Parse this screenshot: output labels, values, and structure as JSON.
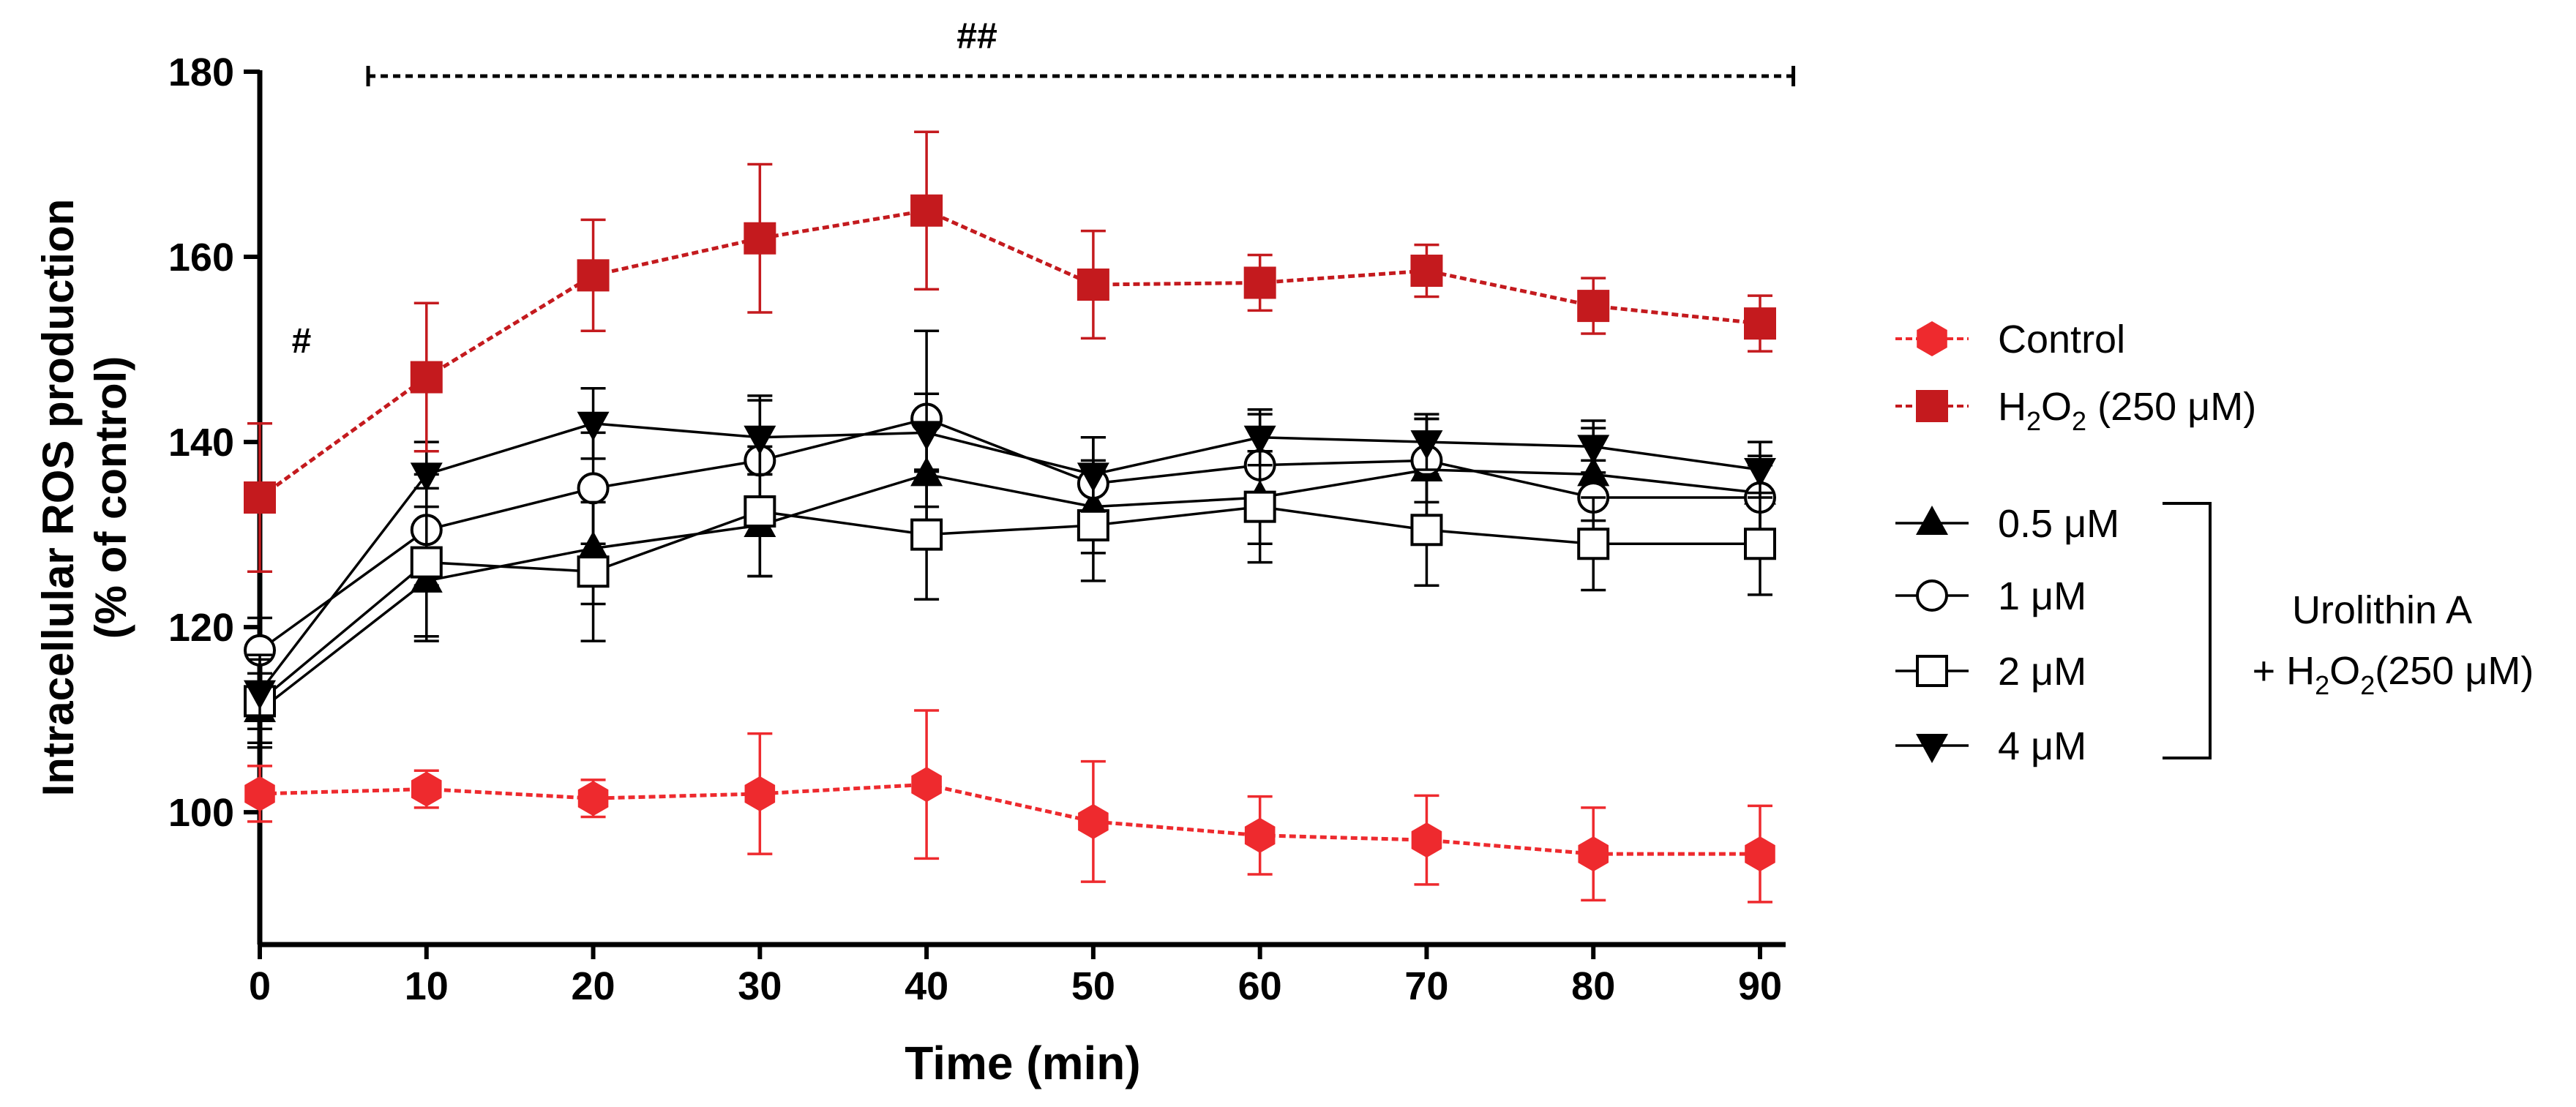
{
  "chart_data": {
    "type": "line",
    "title": "",
    "xlabel": "Time (min)",
    "ylabel_line1": "Intracellular ROS production",
    "ylabel_line2": "(% of control)",
    "x": [
      0,
      10,
      20,
      30,
      40,
      50,
      60,
      70,
      80,
      90
    ],
    "xlim": [
      0,
      90
    ],
    "ylim": [
      88,
      180
    ],
    "xticks": [
      "0",
      "10",
      "20",
      "30",
      "40",
      "50",
      "60",
      "70",
      "80",
      "90"
    ],
    "yticks": [
      "100",
      "120",
      "140",
      "160",
      "180"
    ],
    "grid": false,
    "legend_placement": "right",
    "annotations": {
      "single": "#",
      "double": "##"
    },
    "series": [
      {
        "name": "Control",
        "color": "#ee2a2e",
        "marker": "hexagon",
        "line": "dotted",
        "values": [
          102,
          102.5,
          101.5,
          102,
          103,
          99,
          97.5,
          97,
          95.5,
          95.5
        ],
        "err": [
          3,
          2,
          2,
          6.5,
          8,
          6.5,
          4.2,
          4.8,
          5,
          5.2
        ]
      },
      {
        "name": "H2O2 (250 μM)",
        "color": "#c41a1e",
        "marker": "square-filled",
        "line": "dotted",
        "values": [
          134,
          147,
          158,
          162,
          165,
          157,
          157.2,
          158.5,
          154.7,
          152.8
        ],
        "err": [
          8,
          8,
          6,
          8,
          8.5,
          5.8,
          3,
          2.8,
          3,
          3
        ]
      },
      {
        "name": "0.5 μM",
        "color": "#000000",
        "marker": "triangle-up",
        "line": "solid",
        "values": [
          111,
          125,
          128.5,
          131,
          136.5,
          133,
          134,
          137,
          136.5,
          134.5
        ],
        "err": [
          4,
          6.5,
          6,
          5.5,
          6,
          5,
          5,
          5.5,
          5,
          4
        ]
      },
      {
        "name": "1 μM",
        "color": "#000000",
        "marker": "circle-open",
        "line": "solid",
        "values": [
          117.5,
          130.5,
          135,
          138,
          142.5,
          135.5,
          137.5,
          138,
          134,
          134
        ],
        "err": [
          3.5,
          6,
          6,
          7,
          9.5,
          5,
          5.5,
          4.5,
          4,
          3.5
        ]
      },
      {
        "name": "2 μM",
        "color": "#000000",
        "marker": "square-open",
        "line": "solid",
        "values": [
          112,
          127,
          126,
          132.5,
          130,
          131,
          133,
          130.5,
          129,
          129
        ],
        "err": [
          4.5,
          8,
          7.5,
          7,
          7,
          6,
          6,
          6,
          5,
          5.5
        ]
      },
      {
        "name": "4 μM",
        "color": "#000000",
        "marker": "triangle-down",
        "line": "solid",
        "values": [
          113,
          136.5,
          142,
          140.5,
          141,
          136.5,
          140.5,
          140,
          139.5,
          137
        ],
        "err": [
          4,
          3.5,
          3.8,
          4,
          4.2,
          4,
          3,
          3,
          2.8,
          3
        ]
      }
    ],
    "legend": {
      "control": "Control",
      "h2o2_prefix": "H",
      "h2o2_sub1": "2",
      "h2o2_mid": "O",
      "h2o2_sub2": "2",
      "h2o2_suffix": " (250 μM)",
      "ua_items": [
        "0.5 μM",
        "1  μM",
        "2  μM",
        "4 μM"
      ],
      "ua_group_line1": "Urolithin  A",
      "ua_group_line2_prefix": "+ H",
      "ua_group_line2_sub1": "2",
      "ua_group_line2_mid": "O",
      "ua_group_line2_sub2": "2",
      "ua_group_line2_suffix": "(250 μM)"
    }
  }
}
